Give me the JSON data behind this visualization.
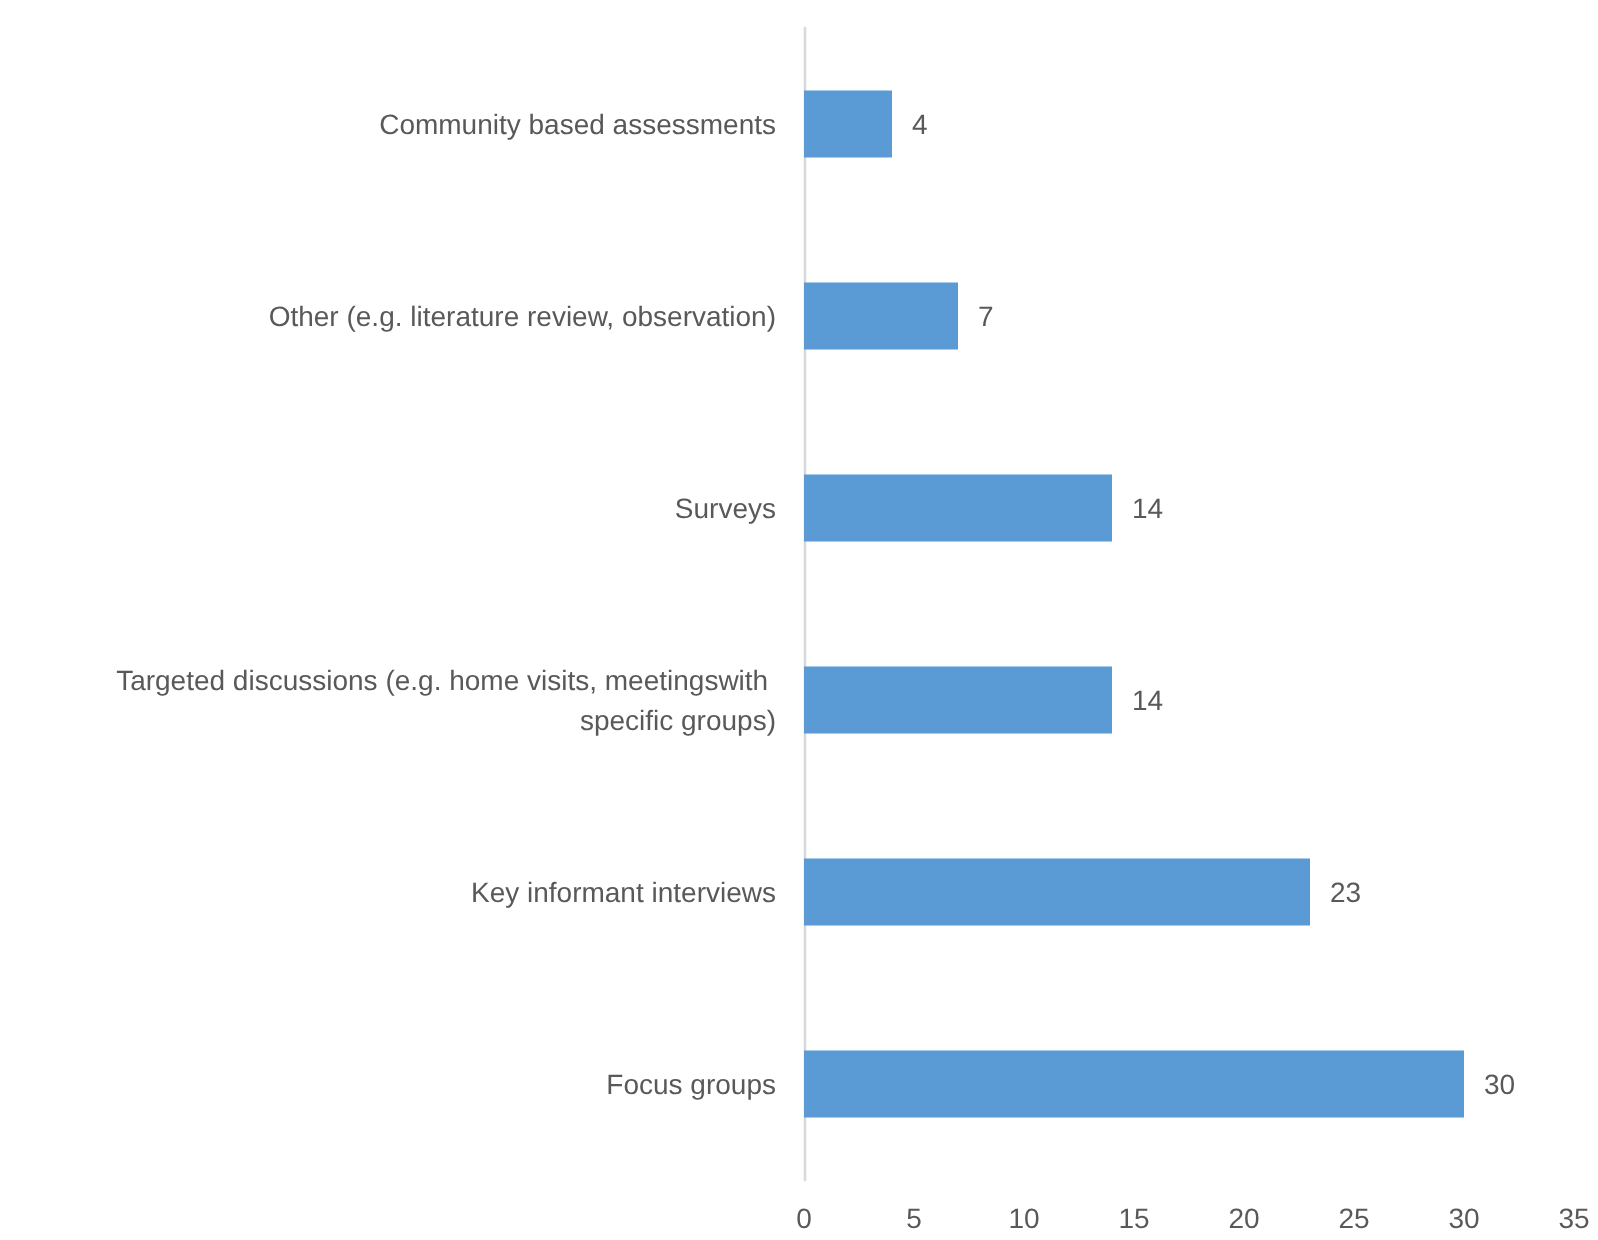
{
  "chart_data": {
    "type": "bar",
    "orientation": "horizontal",
    "categories": [
      "Community based assessments",
      "Other (e.g. literature review, observation)",
      "Surveys",
      "Targeted discussions (e.g. home visits, meetingswith specific groups)",
      "Key informant interviews",
      "Focus groups"
    ],
    "values": [
      4,
      7,
      14,
      14,
      23,
      30
    ],
    "color": "#5b9bd5",
    "xlim": [
      0,
      35
    ],
    "xticks": [
      0,
      5,
      10,
      15,
      20,
      25,
      30,
      35
    ],
    "data_labels": true
  }
}
